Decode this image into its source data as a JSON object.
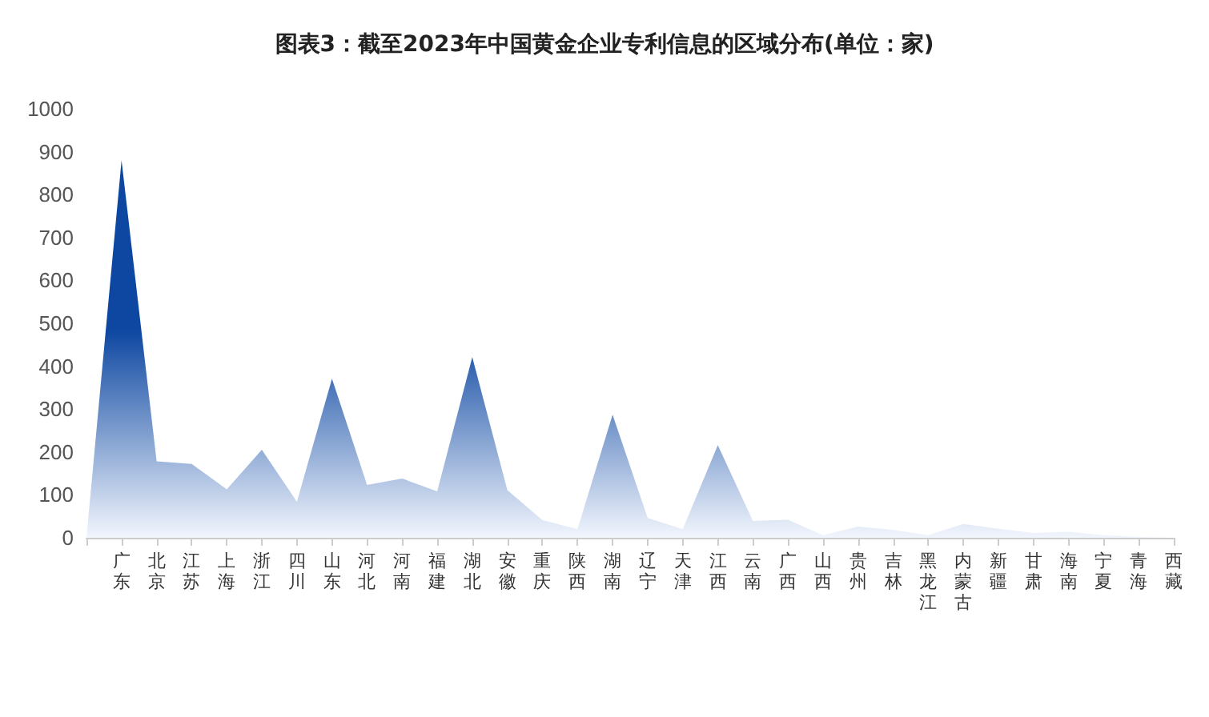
{
  "chart_data": {
    "type": "area",
    "title": "图表3：截至2023年中国黄金企业专利信息的区域分布(单位：家)",
    "categories": [
      null,
      "广东",
      "北京",
      "江苏",
      "上海",
      "浙江",
      "四川",
      "山东",
      "河北",
      "河南",
      "福建",
      "湖北",
      "安徽",
      "重庆",
      "陕西",
      "湖南",
      "辽宁",
      "天津",
      "江西",
      "云南",
      "广西",
      "山西",
      "贵州",
      "吉林",
      "黑龙江",
      "内蒙古",
      "新疆",
      "甘肃",
      "海南",
      "宁夏",
      "青海",
      "西藏"
    ],
    "values": [
      0,
      880,
      178,
      172,
      113,
      205,
      84,
      371,
      123,
      138,
      108,
      421,
      111,
      41,
      20,
      287,
      46,
      20,
      216,
      39,
      42,
      6,
      26,
      18,
      6,
      32,
      21,
      11,
      14,
      6,
      2,
      0
    ],
    "color": "#0d47a1",
    "ylim": [
      0,
      1000
    ],
    "yticks": [
      0,
      100,
      200,
      300,
      400,
      500,
      600,
      700,
      800,
      900,
      1000
    ],
    "grid": false
  }
}
